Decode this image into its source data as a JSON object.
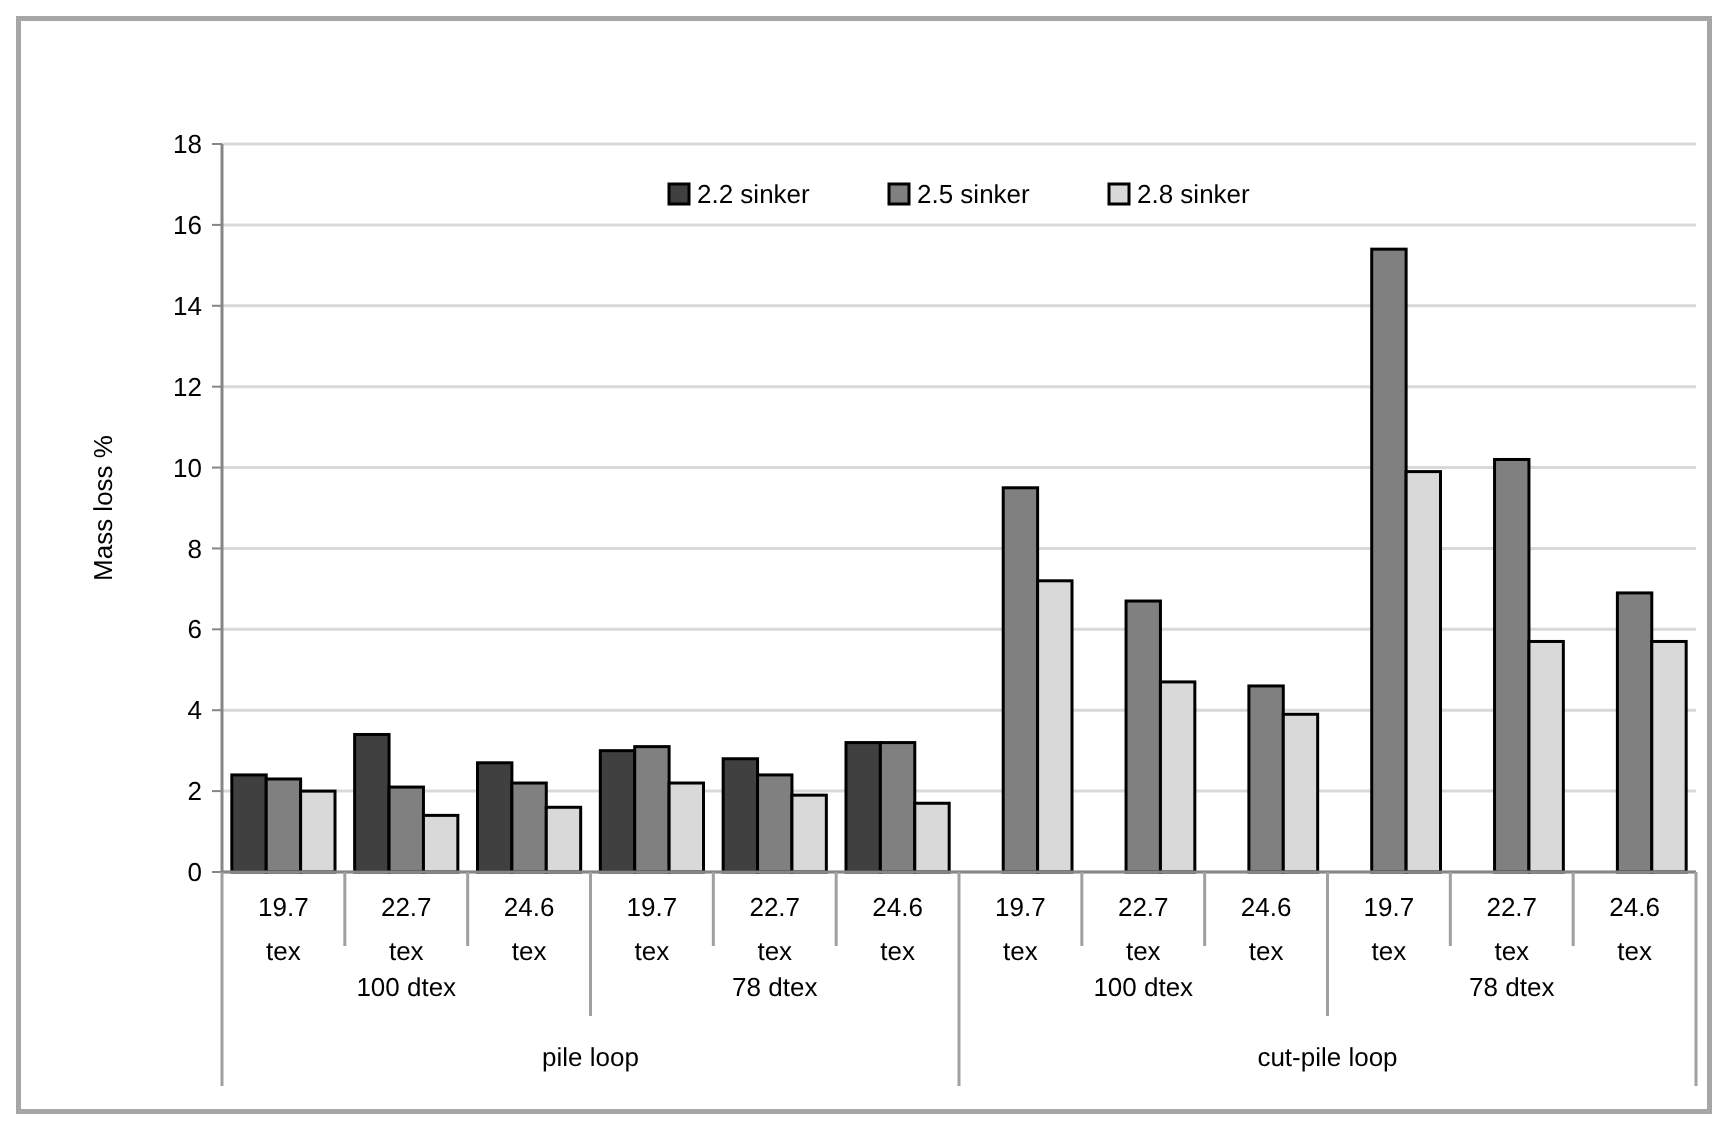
{
  "chart_data": {
    "type": "bar",
    "ylabel": "Mass loss %",
    "categories": [
      "19.7 tex",
      "22.7 tex",
      "24.6 tex",
      "19.7 tex",
      "22.7 tex",
      "24.6 tex",
      "19.7 tex",
      "22.7 tex",
      "24.6 tex",
      "19.7 tex",
      "22.7 tex",
      "24.6 tex"
    ],
    "series": [
      {
        "name": "2.2 sinker",
        "color": "#404040",
        "values": [
          2.4,
          3.4,
          2.7,
          3.0,
          2.8,
          3.2,
          null,
          null,
          null,
          null,
          null,
          null
        ]
      },
      {
        "name": "2.5 sinker",
        "color": "#808080",
        "values": [
          2.3,
          2.1,
          2.2,
          3.1,
          2.4,
          3.2,
          9.5,
          6.7,
          4.6,
          15.4,
          10.2,
          6.9
        ]
      },
      {
        "name": "2.8 sinker",
        "color": "#d9d9d9",
        "values": [
          2.0,
          1.4,
          1.6,
          2.2,
          1.9,
          1.7,
          7.2,
          4.7,
          3.9,
          9.9,
          5.7,
          5.7
        ]
      }
    ],
    "annotations": [
      "100 dtex",
      "78 dtex",
      "100 dtex",
      "78 dtex",
      "pile loop",
      "cut-pile loop"
    ],
    "ylim": [
      0,
      18
    ],
    "yticks": [
      0,
      2,
      4,
      6,
      8,
      10,
      12,
      14,
      16,
      18
    ],
    "grid": "y",
    "legend": "top"
  }
}
